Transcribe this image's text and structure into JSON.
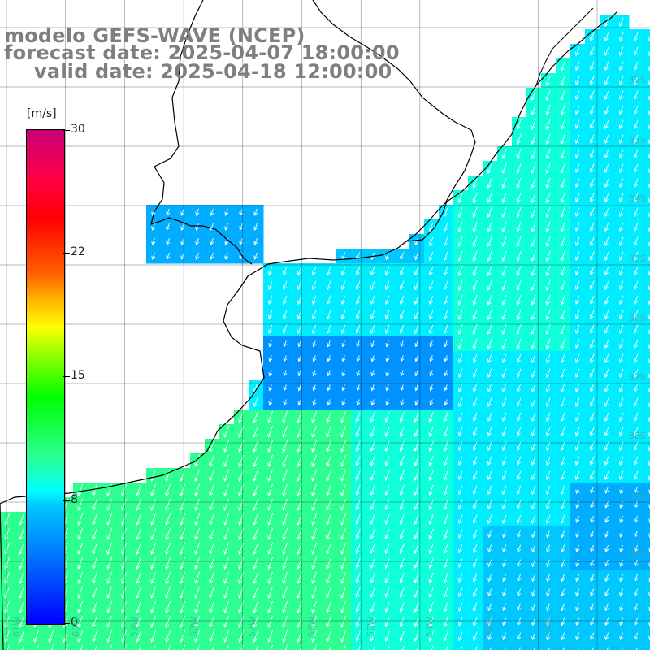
{
  "title": {
    "line1": "modelo GEFS-WAVE (NCEP)",
    "line2": "forecast date: 2025-04-07 18:00:00",
    "line3": "valid date: 2025-04-18 12:00:00"
  },
  "colorbar": {
    "units": "[m/s]",
    "min": 0,
    "max": 30,
    "ticks": [
      "30",
      "22",
      "15",
      "8",
      "0"
    ],
    "colors": [
      "#0000ff",
      "#0077ff",
      "#00c8ff",
      "#00ffff",
      "#2cff90",
      "#00ff00",
      "#9cff00",
      "#ffff00",
      "#ff6000",
      "#ff0000",
      "#c8007a"
    ]
  },
  "map": {
    "variable": "wind speed with direction arrows",
    "land_color": "#ffffff",
    "coast_color": "#000000",
    "grid_color": "#000000",
    "lat_labels": [
      "32S",
      "33S",
      "34S",
      "35S",
      "36S",
      "37S",
      "38S",
      "39S",
      "40S"
    ],
    "lon_labels": [
      "61W",
      "60W",
      "59W",
      "58W",
      "57W",
      "56W",
      "55W",
      "54W",
      "53W",
      "52W"
    ],
    "wind_regions": [
      {
        "area": "inner Rio de la Plata",
        "speed": 5
      },
      {
        "area": "Bahia Samborombon",
        "speed": 4
      },
      {
        "area": "Uruguay / southern Brazil coast",
        "speed": 10
      },
      {
        "area": "offshore Mar del Plata",
        "speed": 12
      },
      {
        "area": "far southeast",
        "speed": 5
      }
    ]
  }
}
